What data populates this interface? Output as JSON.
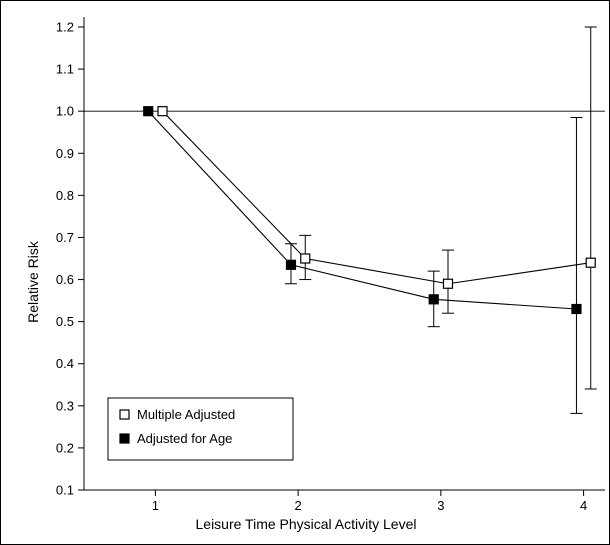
{
  "chart_data": {
    "type": "line",
    "xlabel": "Leisure Time Physical Activity Level",
    "ylabel": "Relative Risk",
    "xlim": [
      0.5,
      4.15
    ],
    "ylim": [
      0.1,
      1.2
    ],
    "x_ticks": [
      1,
      2,
      3,
      4
    ],
    "y_ticks": [
      0.1,
      0.2,
      0.3,
      0.4,
      0.5,
      0.6,
      0.7,
      0.8,
      0.9,
      1.0,
      1.1,
      1.2
    ],
    "y_tick_labels": [
      "0.1",
      "0.2",
      "0.3",
      "0.4",
      "0.5",
      "0.6",
      "0.7",
      "0.8",
      "0.9",
      "1.0",
      "1.1",
      "1.2"
    ],
    "reference_line": 1.0,
    "legend_position": "bottom-left",
    "grid": false,
    "series": [
      {
        "name": "Multiple Adjusted",
        "marker": "open-square",
        "x_offset": 0.05,
        "points": [
          {
            "x": 1,
            "y": 1.0
          },
          {
            "x": 2,
            "y": 0.65,
            "lo": 0.6,
            "hi": 0.705
          },
          {
            "x": 3,
            "y": 0.59,
            "lo": 0.52,
            "hi": 0.67
          },
          {
            "x": 4,
            "y": 0.64,
            "lo": 0.34,
            "hi": 1.2
          }
        ]
      },
      {
        "name": "Adjusted for Age",
        "marker": "filled-square",
        "x_offset": -0.05,
        "points": [
          {
            "x": 1,
            "y": 1.0
          },
          {
            "x": 2,
            "y": 0.635,
            "lo": 0.59,
            "hi": 0.685
          },
          {
            "x": 3,
            "y": 0.553,
            "lo": 0.488,
            "hi": 0.62
          },
          {
            "x": 4,
            "y": 0.53,
            "lo": 0.282,
            "hi": 0.985
          }
        ]
      }
    ]
  }
}
